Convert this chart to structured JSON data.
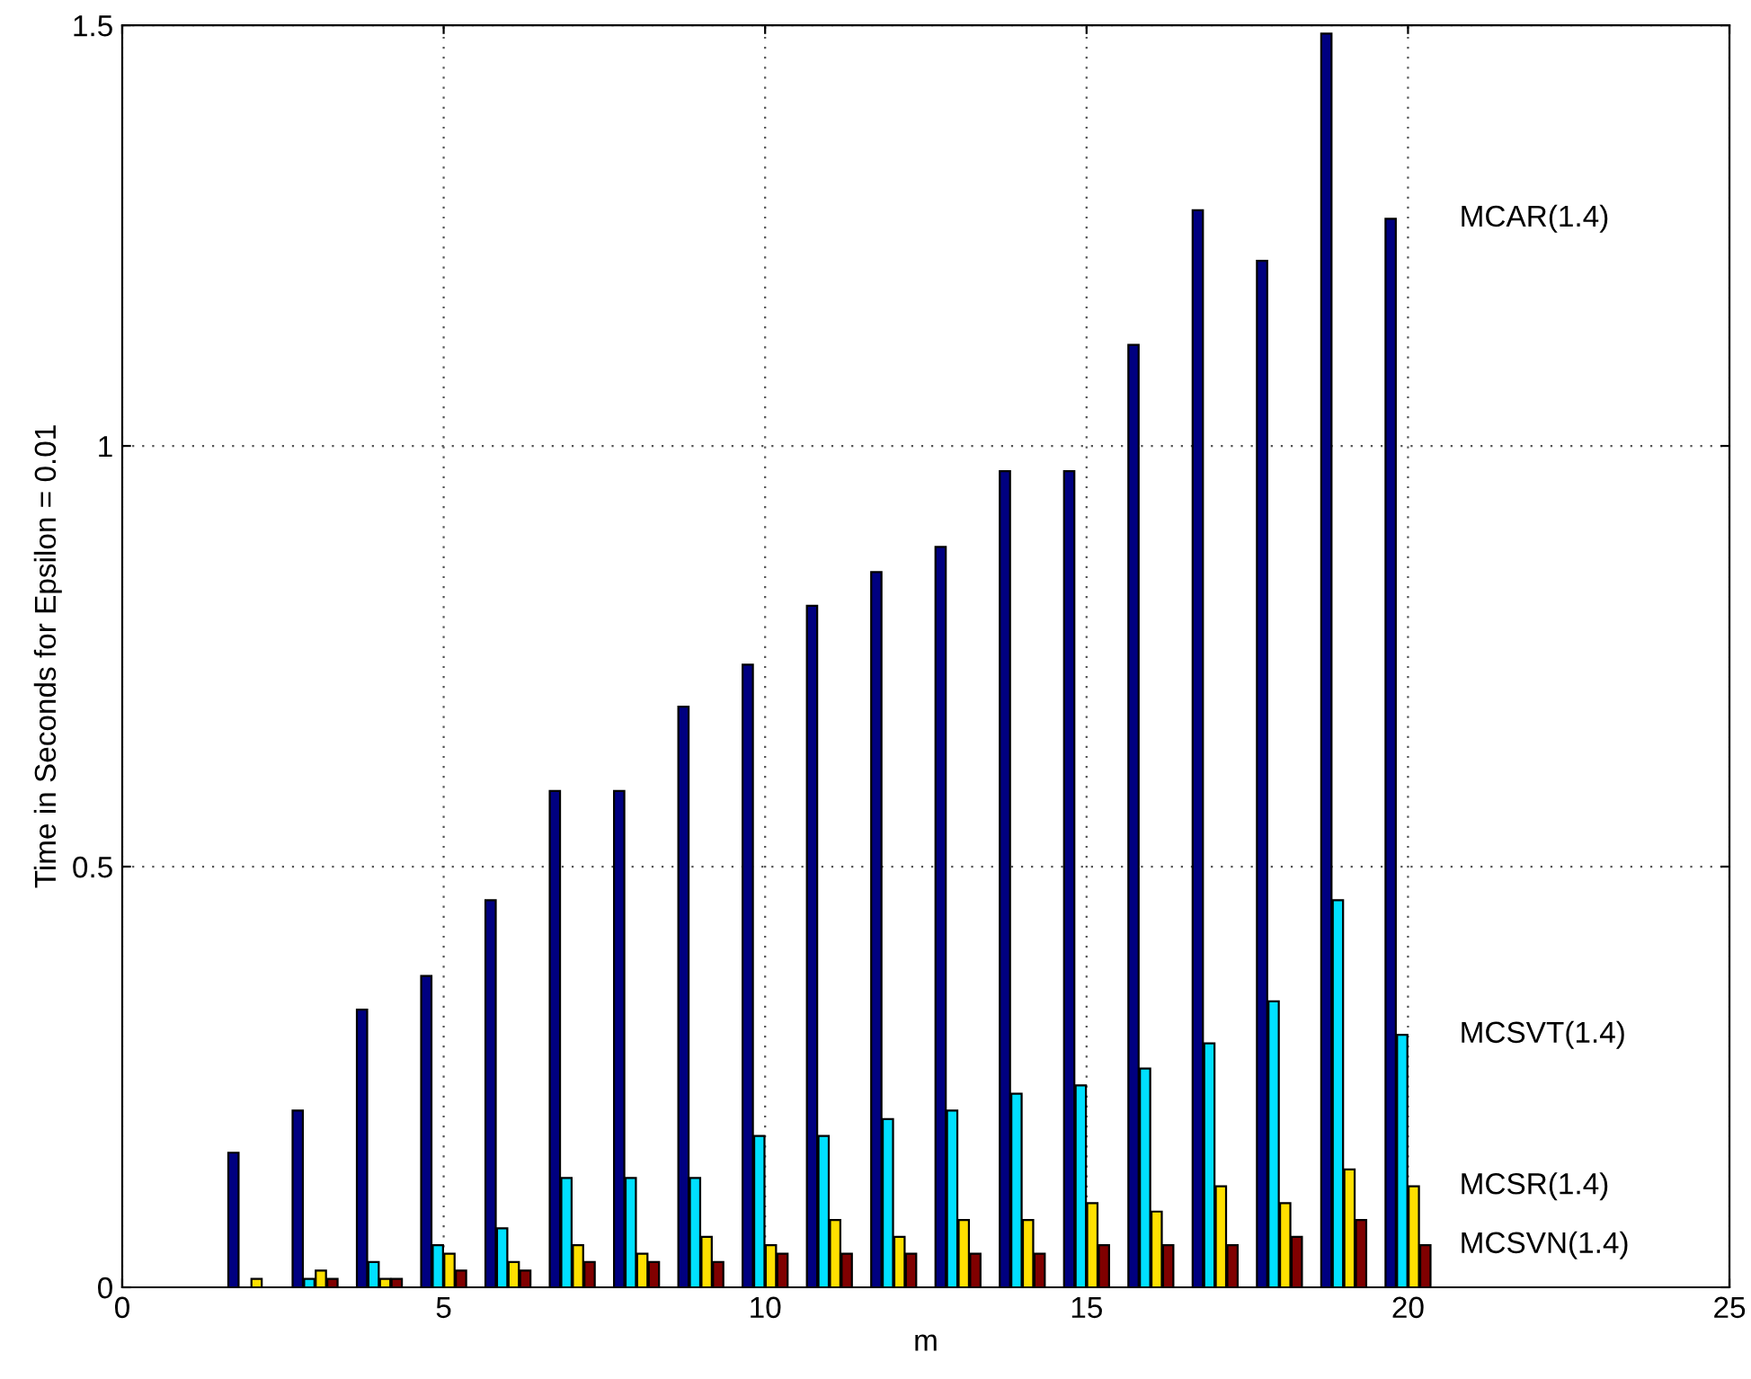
{
  "chart_data": {
    "type": "bar",
    "xlabel": "m",
    "ylabel": "Time in Seconds for Epsilon = 0.01",
    "x": [
      2,
      3,
      4,
      5,
      6,
      7,
      8,
      9,
      10,
      11,
      12,
      13,
      14,
      15,
      16,
      17,
      18,
      19,
      20
    ],
    "series": [
      {
        "name": "MCAR(1.4)",
        "color": "#000080",
        "values": [
          0.16,
          0.21,
          0.33,
          0.37,
          0.46,
          0.59,
          0.59,
          0.69,
          0.74,
          0.81,
          0.85,
          0.88,
          0.97,
          0.97,
          1.12,
          1.28,
          1.22,
          1.49,
          1.27
        ]
      },
      {
        "name": "MCSVT(1.4)",
        "color": "#00e0ff",
        "values": [
          null,
          0.01,
          0.03,
          0.05,
          0.07,
          0.13,
          0.13,
          0.13,
          0.18,
          0.18,
          0.2,
          0.21,
          0.23,
          0.24,
          0.26,
          0.29,
          0.34,
          0.46,
          0.3
        ]
      },
      {
        "name": "MCSR(1.4)",
        "color": "#ffe000",
        "values": [
          0.01,
          0.02,
          0.01,
          0.04,
          0.03,
          0.05,
          0.04,
          0.06,
          0.05,
          0.08,
          0.06,
          0.08,
          0.08,
          0.1,
          0.09,
          0.12,
          0.1,
          0.14,
          0.12
        ]
      },
      {
        "name": "MCSVN(1.4)",
        "color": "#800000",
        "values": [
          null,
          0.01,
          0.01,
          0.02,
          0.02,
          0.03,
          0.03,
          0.03,
          0.04,
          0.04,
          0.04,
          0.04,
          0.04,
          0.05,
          0.05,
          0.05,
          0.06,
          0.08,
          0.05
        ]
      }
    ],
    "xlim": [
      0,
      25
    ],
    "xticks": [
      0,
      5,
      10,
      15,
      20,
      25
    ],
    "ylim": [
      0,
      1.5
    ],
    "yticks": [
      0,
      0.5,
      1,
      1.5
    ],
    "grid": true,
    "legend": false
  }
}
